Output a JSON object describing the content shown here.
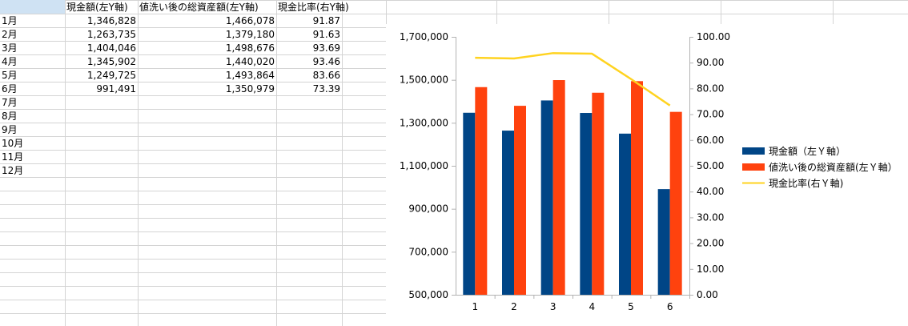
{
  "sheet": {
    "headers": [
      "",
      "現金額(左Y軸)",
      "値洗い後の総資産額(左Y軸)",
      "現金比率(右Y軸)"
    ],
    "rows": [
      {
        "month": "1月",
        "cash": "1,346,828",
        "total": "1,466,078",
        "ratio": "91.87"
      },
      {
        "month": "2月",
        "cash": "1,263,735",
        "total": "1,379,180",
        "ratio": "91.63"
      },
      {
        "month": "3月",
        "cash": "1,404,046",
        "total": "1,498,676",
        "ratio": "93.69"
      },
      {
        "month": "4月",
        "cash": "1,345,902",
        "total": "1,440,020",
        "ratio": "93.46"
      },
      {
        "month": "5月",
        "cash": "1,249,725",
        "total": "1,493,864",
        "ratio": "83.66"
      },
      {
        "month": "6月",
        "cash": "991,491",
        "total": "1,350,979",
        "ratio": "73.39"
      },
      {
        "month": "7月",
        "cash": "",
        "total": "",
        "ratio": ""
      },
      {
        "month": "8月",
        "cash": "",
        "total": "",
        "ratio": ""
      },
      {
        "month": "9月",
        "cash": "",
        "total": "",
        "ratio": ""
      },
      {
        "month": "10月",
        "cash": "",
        "total": "",
        "ratio": ""
      },
      {
        "month": "11月",
        "cash": "",
        "total": "",
        "ratio": ""
      },
      {
        "month": "12月",
        "cash": "",
        "total": "",
        "ratio": ""
      }
    ]
  },
  "chart_data": {
    "type": "bar",
    "categories": [
      "1",
      "2",
      "3",
      "4",
      "5",
      "6"
    ],
    "series": [
      {
        "name": "現金額（左Ｙ軸）",
        "kind": "bar",
        "axis": "left",
        "color": "#004586",
        "values": [
          1346828,
          1263735,
          1404046,
          1345902,
          1249725,
          991491
        ]
      },
      {
        "name": "値洗い後の総資産額(左Ｙ軸）",
        "kind": "bar",
        "axis": "left",
        "color": "#ff420e",
        "values": [
          1466078,
          1379180,
          1498676,
          1440020,
          1493864,
          1350979
        ]
      },
      {
        "name": "現金比率(右Ｙ軸)",
        "kind": "line",
        "axis": "right",
        "color": "#ffd320",
        "values": [
          91.87,
          91.63,
          93.69,
          93.46,
          83.66,
          73.39
        ]
      }
    ],
    "y_left": {
      "min": 500000,
      "max": 1700000,
      "step": 200000,
      "ticks": [
        "500,000",
        "700,000",
        "900,000",
        "1,100,000",
        "1,300,000",
        "1,500,000",
        "1,700,000"
      ]
    },
    "y_right": {
      "min": 0,
      "max": 100,
      "step": 10,
      "ticks": [
        "0.00",
        "10.00",
        "20.00",
        "30.00",
        "40.00",
        "50.00",
        "60.00",
        "70.00",
        "80.00",
        "90.00",
        "100.00"
      ]
    },
    "legend_position": "right",
    "grid": false
  }
}
